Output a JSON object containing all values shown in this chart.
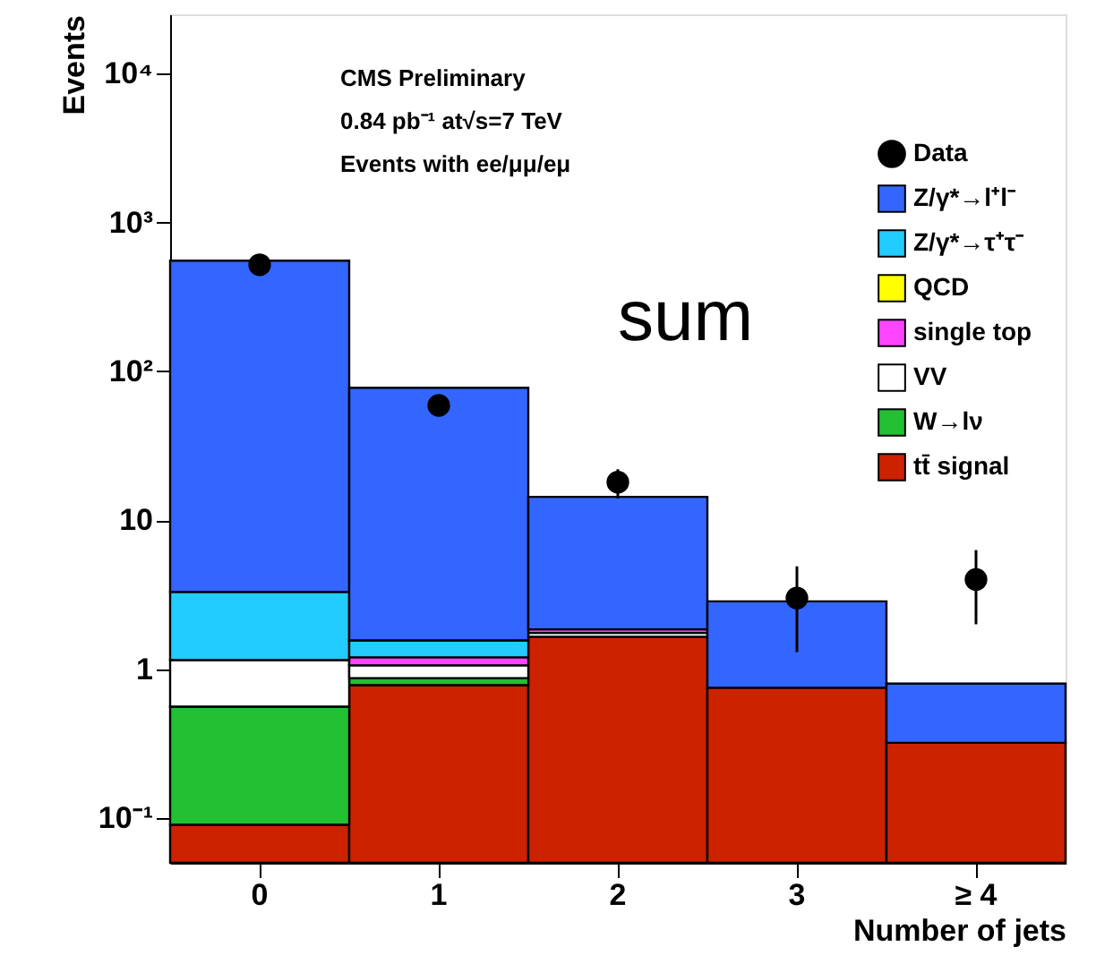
{
  "chart_data": {
    "type": "bar",
    "stacked": true,
    "xlabel": "Number of jets",
    "ylabel": "Events",
    "categories": [
      "0",
      "1",
      "2",
      "3",
      "≥ 4"
    ],
    "series": [
      {
        "name": "tt̄ signal",
        "color": "#cc2200",
        "values": [
          0.09,
          0.78,
          1.65,
          0.75,
          0.32
        ]
      },
      {
        "name": "W→lν",
        "color": "#22c033",
        "values": [
          0.47,
          0.09,
          null,
          null,
          null
        ]
      },
      {
        "name": "VV",
        "color": "#ffffff",
        "values": [
          0.59,
          0.19,
          0.1,
          null,
          null
        ]
      },
      {
        "name": "single top",
        "color": "#ff44ff",
        "values": [
          null,
          0.14,
          0.1,
          null,
          null
        ]
      },
      {
        "name": "QCD",
        "color": "#ffff00",
        "values": [
          null,
          null,
          null,
          null,
          null
        ]
      },
      {
        "name": "Z/γ*→τ⁺τ⁻",
        "color": "#22ccff",
        "values": [
          2.15,
          0.36,
          null,
          null,
          null
        ]
      },
      {
        "name": "Z/γ*→l⁺l⁻",
        "color": "#3366ff",
        "values": [
          550,
          76,
          12.5,
          2.1,
          0.48
        ]
      },
      {
        "name": "Data",
        "type": "scatter",
        "color": "#000000",
        "marker": "circle",
        "x": [
          "0",
          "1",
          "2",
          "3",
          "≥ 4"
        ],
        "values": [
          520,
          59,
          18,
          3,
          4
        ],
        "errors": [
          null,
          null,
          [
            14,
            22
          ],
          [
            1.3,
            4.9
          ],
          [
            2.0,
            6.3
          ]
        ]
      }
    ],
    "log": true,
    "ylim": [
      0.05,
      25000
    ],
    "yticks": [
      {
        "value": 0.1,
        "label": "10⁻¹"
      },
      1,
      10,
      {
        "value": 100,
        "label": "10²"
      },
      {
        "value": 1000,
        "label": "10³"
      },
      {
        "value": 10000,
        "label": "10⁴"
      }
    ],
    "legend": "top right",
    "grid": false,
    "annotations": [
      "CMS Preliminary",
      "0.84 pb⁻¹ at√s=7 TeV",
      "Events with ee/μμ/eμ",
      "sum"
    ]
  }
}
